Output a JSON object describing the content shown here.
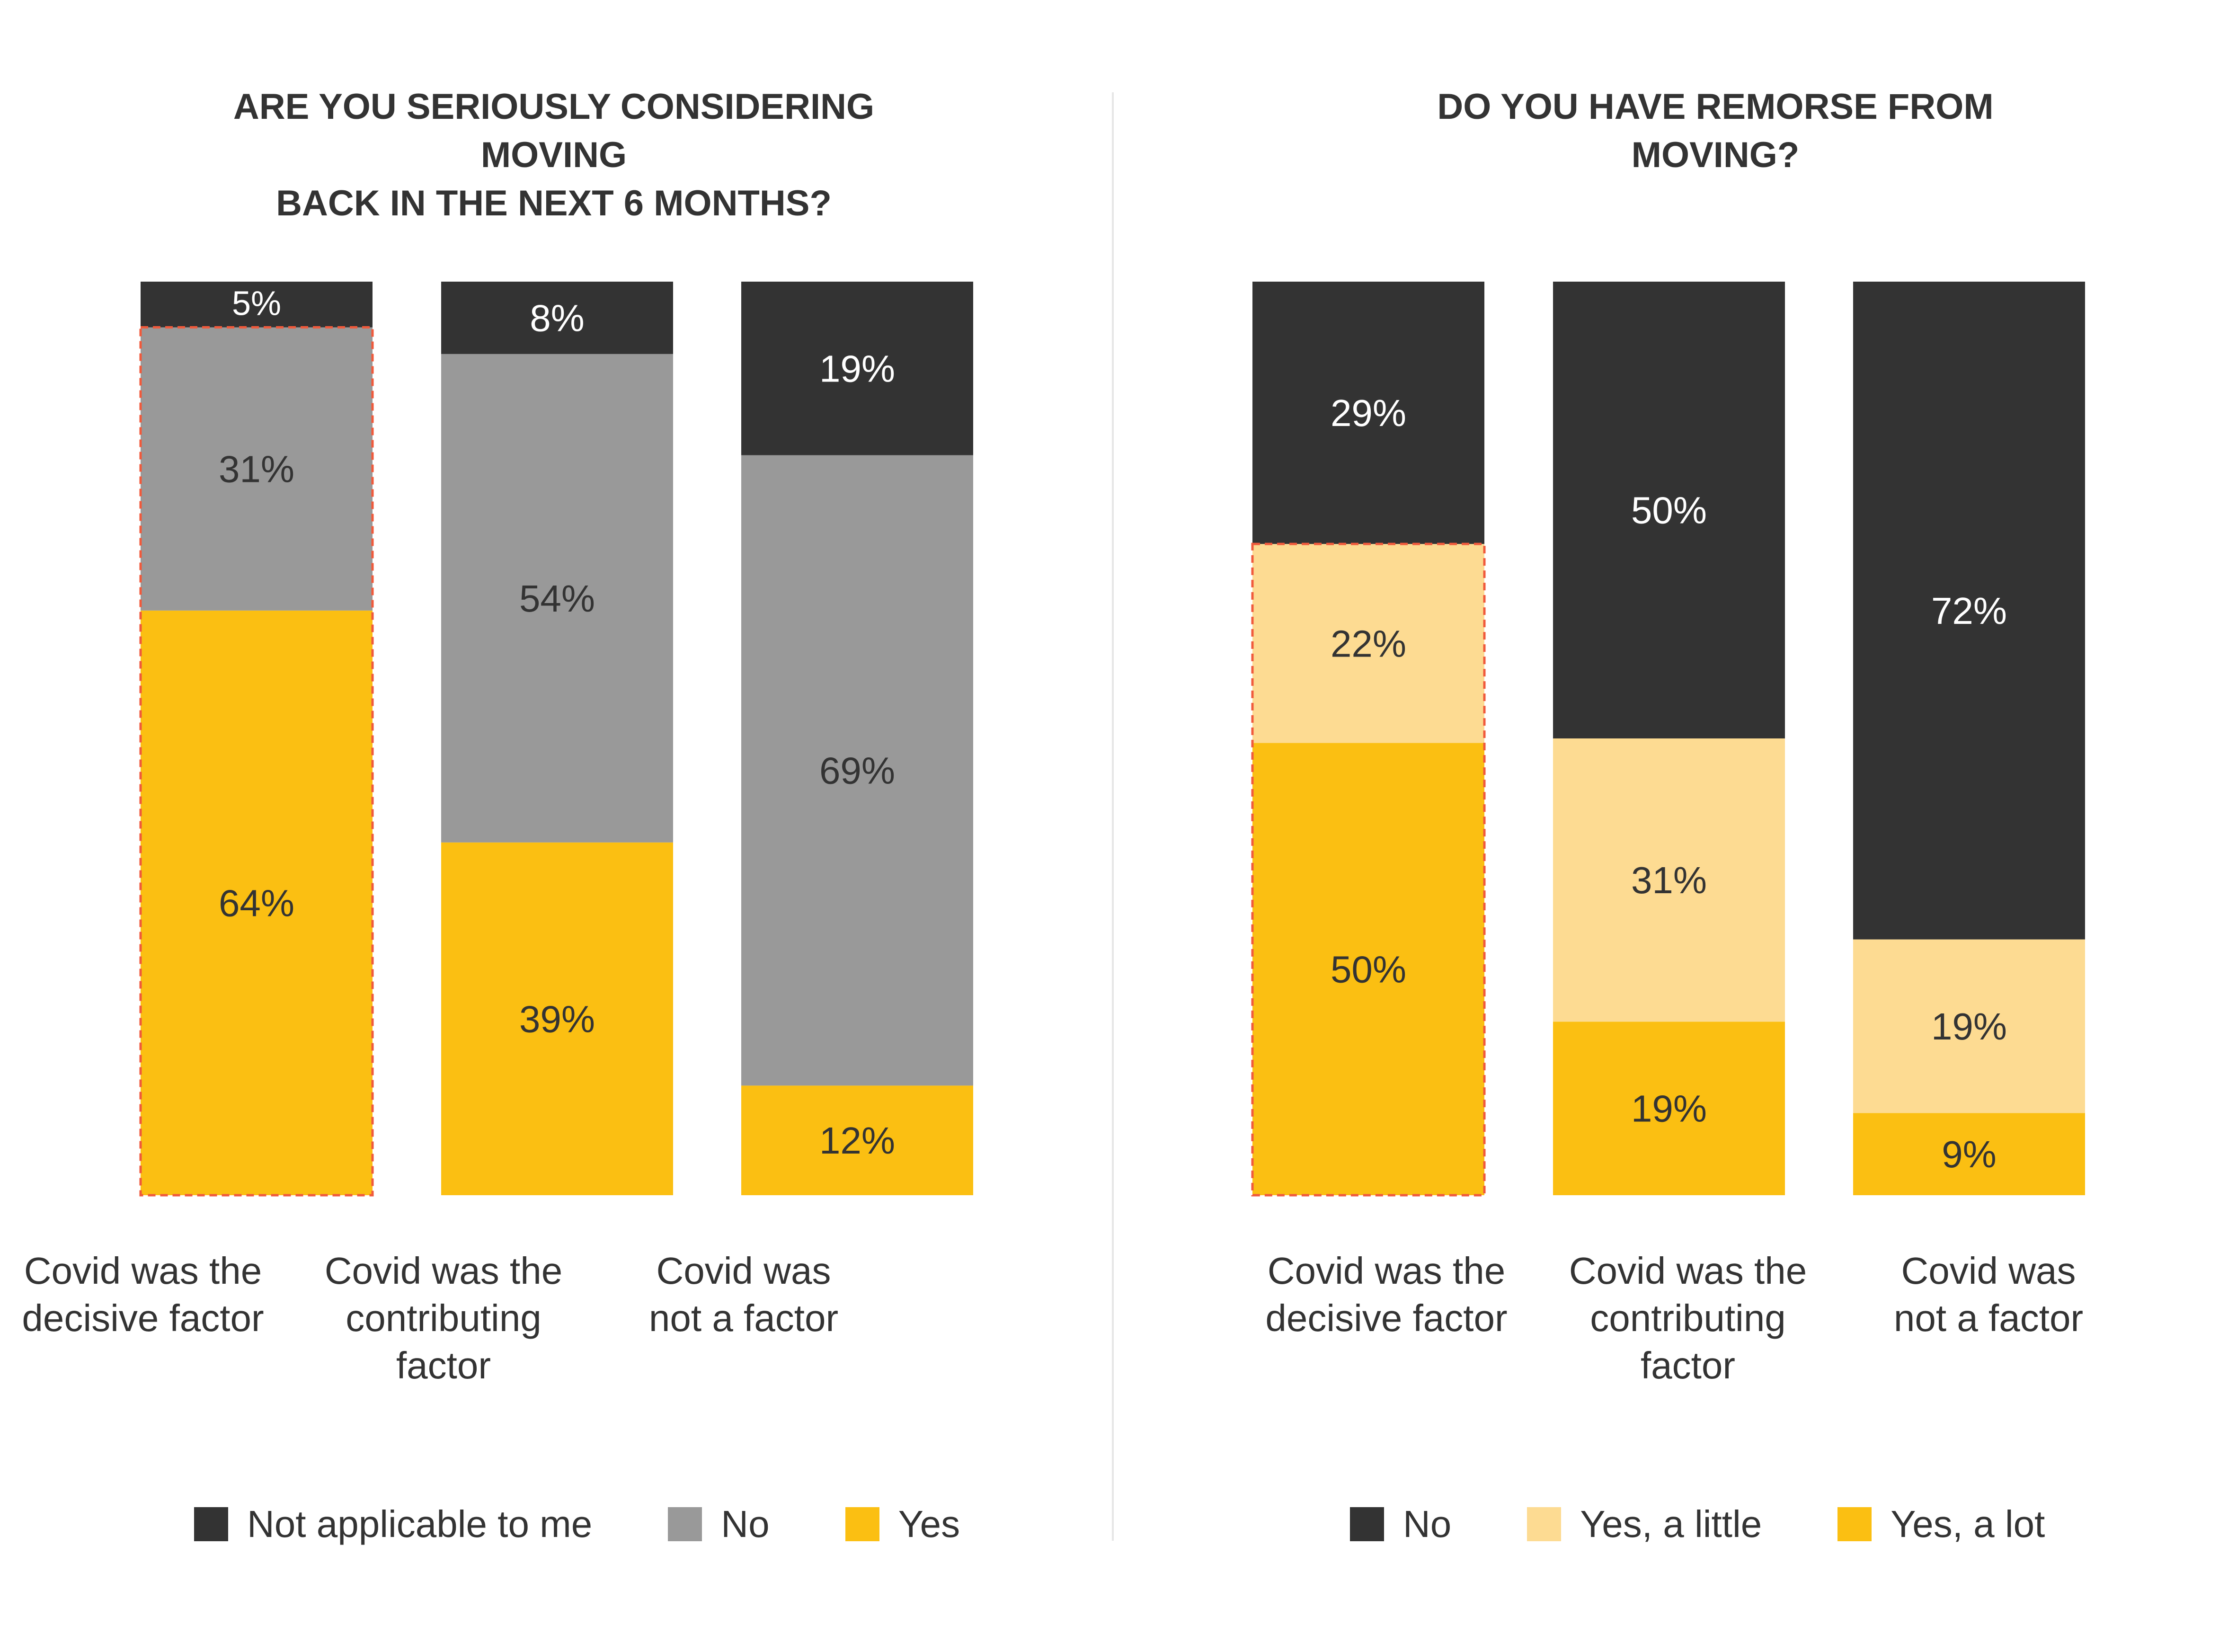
{
  "colors": {
    "dark": "#333333",
    "gray": "#999999",
    "yellow": "#fbbf12",
    "light_yellow": "#fddb92",
    "highlight_dash": "#f05a3c",
    "label_light": "#ffffff",
    "label_dark": "#333333"
  },
  "chart_data": [
    {
      "type": "bar",
      "stacked": true,
      "percent": true,
      "title_lines": [
        "ARE YOU SERIOUSLY CONSIDERING MOVING",
        "BACK IN THE NEXT 6 MONTHS?"
      ],
      "categories": [
        "Covid was the decisive factor",
        "Covid was the contributing factor",
        "Covid was not a factor"
      ],
      "category_label_lines": [
        [
          "Covid was the",
          "decisive factor"
        ],
        [
          "Covid was the",
          "contributing",
          "factor"
        ],
        [
          "Covid was",
          "not a factor"
        ]
      ],
      "series": [
        {
          "name": "Yes",
          "color_key": "yellow",
          "label_color_key": "label_dark",
          "values": [
            64,
            39,
            12
          ]
        },
        {
          "name": "No",
          "color_key": "gray",
          "label_color_key": "label_dark",
          "values": [
            31,
            54,
            69
          ]
        },
        {
          "name": "Not applicable to me",
          "color_key": "dark",
          "label_color_key": "label_light",
          "values": [
            5,
            8,
            19
          ]
        }
      ],
      "legend": [
        "Not applicable to me",
        "No",
        "Yes"
      ],
      "legend_color_keys": [
        "dark",
        "gray",
        "yellow"
      ],
      "highlight": {
        "category_index": 0,
        "series": [
          "Yes",
          "No"
        ]
      },
      "ylim": [
        0,
        100
      ],
      "legend_position": "bottom"
    },
    {
      "type": "bar",
      "stacked": true,
      "percent": true,
      "title_lines": [
        "DO YOU HAVE REMORSE FROM MOVING?"
      ],
      "categories": [
        "Covid was the decisive factor",
        "Covid was the contributing factor",
        "Covid was not a factor"
      ],
      "category_label_lines": [
        [
          "Covid was the",
          "decisive factor"
        ],
        [
          "Covid was the",
          "contributing",
          "factor"
        ],
        [
          "Covid was",
          "not a factor"
        ]
      ],
      "series": [
        {
          "name": "Yes, a lot",
          "color_key": "yellow",
          "label_color_key": "label_dark",
          "values": [
            50,
            19,
            9
          ]
        },
        {
          "name": "Yes, a little",
          "color_key": "light_yellow",
          "label_color_key": "label_dark",
          "values": [
            22,
            31,
            19
          ]
        },
        {
          "name": "No",
          "color_key": "dark",
          "label_color_key": "label_light",
          "values": [
            29,
            50,
            72
          ]
        }
      ],
      "legend": [
        "No",
        "Yes, a little",
        "Yes, a lot"
      ],
      "legend_color_keys": [
        "dark",
        "light_yellow",
        "yellow"
      ],
      "highlight": {
        "category_index": 0,
        "series": [
          "Yes, a lot",
          "Yes, a little"
        ]
      },
      "ylim": [
        0,
        100
      ],
      "legend_position": "bottom"
    }
  ]
}
